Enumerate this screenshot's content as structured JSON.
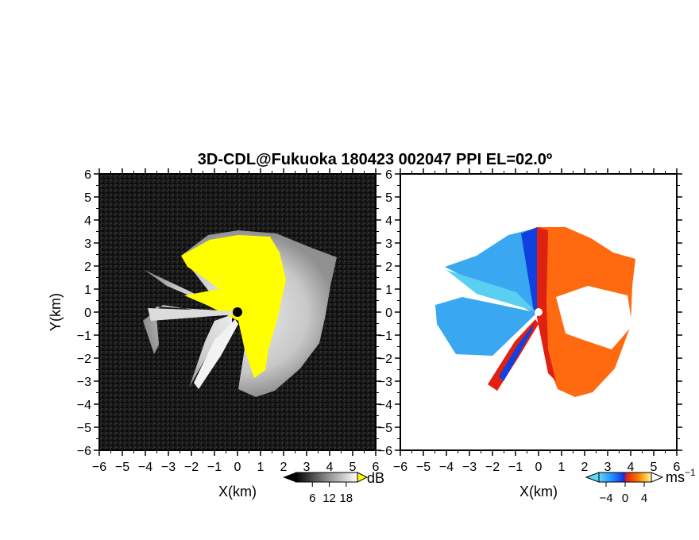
{
  "title": "3D-CDL@Fukuoka 180423 002047 PPI EL=02.0º",
  "chart_data": [
    {
      "type": "heatmap",
      "panel": "left",
      "xlabel": "X(km)",
      "ylabel": "Y(km)",
      "xlim": [
        -6,
        6
      ],
      "ylim": [
        -6,
        6
      ],
      "x_ticks": [
        "−6",
        "−5",
        "−4",
        "−3",
        "−2",
        "−1",
        "0",
        "1",
        "2",
        "3",
        "4",
        "5",
        "6"
      ],
      "y_ticks": [
        "6",
        "5",
        "4",
        "3",
        "2",
        "1",
        "0",
        "−1",
        "−2",
        "−3",
        "−4",
        "−5",
        "−6"
      ],
      "colorbar": {
        "unit": "dB",
        "ticks": [
          "6",
          "12",
          "18"
        ],
        "tick_values": [
          6,
          12,
          18
        ],
        "range": [
          0,
          22
        ]
      },
      "colors": {
        "background_noise": "#1a1a1a",
        "signal_low": "#6e6e6e",
        "signal_high": "#e6e6e6",
        "saturated": "#ffff00"
      }
    },
    {
      "type": "heatmap",
      "panel": "right",
      "xlabel": "X(km)",
      "ylabel": "",
      "xlim": [
        -6,
        6
      ],
      "ylim": [
        -6,
        6
      ],
      "x_ticks": [
        "−6",
        "−5",
        "−4",
        "−3",
        "−2",
        "−1",
        "0",
        "1",
        "2",
        "3",
        "4",
        "5",
        "6"
      ],
      "y_ticks": [
        "6",
        "5",
        "4",
        "3",
        "2",
        "1",
        "0",
        "−1",
        "−2",
        "−3",
        "−4",
        "−5",
        "−6"
      ],
      "colorbar": {
        "unit": "ms",
        "unit_exp": "−1",
        "ticks": [
          "−4",
          "0",
          "4"
        ],
        "tick_values": [
          -4,
          0,
          4
        ],
        "range": [
          -5.5,
          5.5
        ]
      },
      "colors": {
        "neg_far": "#5ad0f0",
        "neg": "#1e90ff",
        "neg_near": "#1030e0",
        "pos_near": "#e02010",
        "pos": "#ff6a00",
        "pos_far": "#ffd040",
        "pos_extreme": "#ffffff"
      }
    }
  ]
}
